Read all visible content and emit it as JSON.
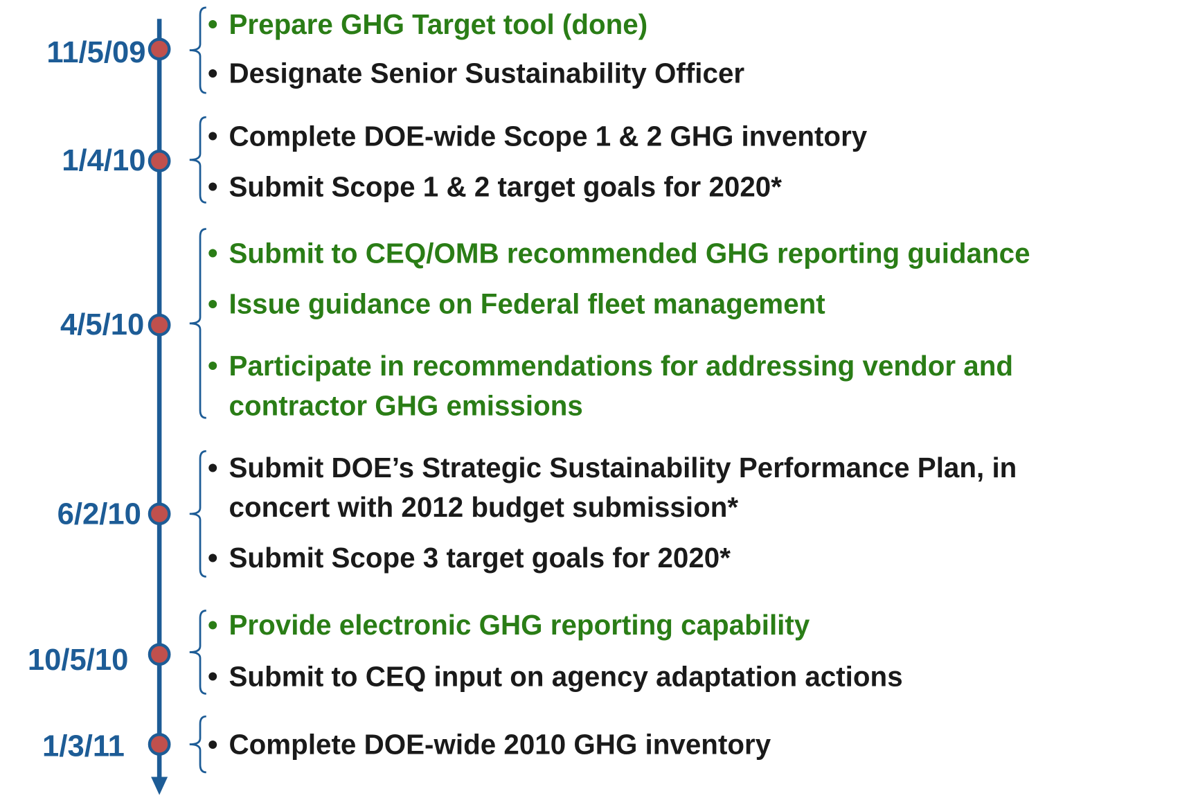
{
  "milestones": [
    {
      "date": "11/5/09",
      "items": [
        {
          "lines": [
            "Prepare GHG Target tool (done)"
          ],
          "color": "#2a7d16"
        },
        {
          "lines": [
            "Designate Senior Sustainability Officer"
          ],
          "color": "#1a1a1a"
        }
      ]
    },
    {
      "date": "1/4/10",
      "items": [
        {
          "lines": [
            "Complete DOE-wide Scope 1 & 2 GHG inventory"
          ],
          "color": "#1a1a1a"
        },
        {
          "lines": [
            "Submit Scope 1 & 2 target goals for 2020*"
          ],
          "color": "#1a1a1a"
        }
      ]
    },
    {
      "date": "4/5/10",
      "items": [
        {
          "lines": [
            "Submit to CEQ/OMB recommended GHG reporting guidance"
          ],
          "color": "#2a7d16"
        },
        {
          "lines": [
            "Issue guidance on Federal fleet management"
          ],
          "color": "#2a7d16"
        },
        {
          "lines": [
            "Participate in recommendations for addressing vendor and",
            "contractor GHG emissions"
          ],
          "color": "#2a7d16"
        }
      ]
    },
    {
      "date": "6/2/10",
      "items": [
        {
          "lines": [
            "Submit DOE’s Strategic Sustainability Performance Plan, in",
            "concert with 2012 budget submission*"
          ],
          "color": "#1a1a1a"
        },
        {
          "lines": [
            "Submit Scope 3 target goals for 2020*"
          ],
          "color": "#1a1a1a"
        }
      ]
    },
    {
      "date": "10/5/10",
      "items": [
        {
          "lines": [
            "Provide electronic GHG reporting capability"
          ],
          "color": "#2a7d16"
        },
        {
          "lines": [
            "Submit to CEQ input on agency adaptation actions"
          ],
          "color": "#1a1a1a"
        }
      ]
    },
    {
      "date": "1/3/11",
      "items": [
        {
          "lines": [
            "Complete DOE-wide 2010 GHG inventory"
          ],
          "color": "#1a1a1a"
        }
      ]
    }
  ]
}
